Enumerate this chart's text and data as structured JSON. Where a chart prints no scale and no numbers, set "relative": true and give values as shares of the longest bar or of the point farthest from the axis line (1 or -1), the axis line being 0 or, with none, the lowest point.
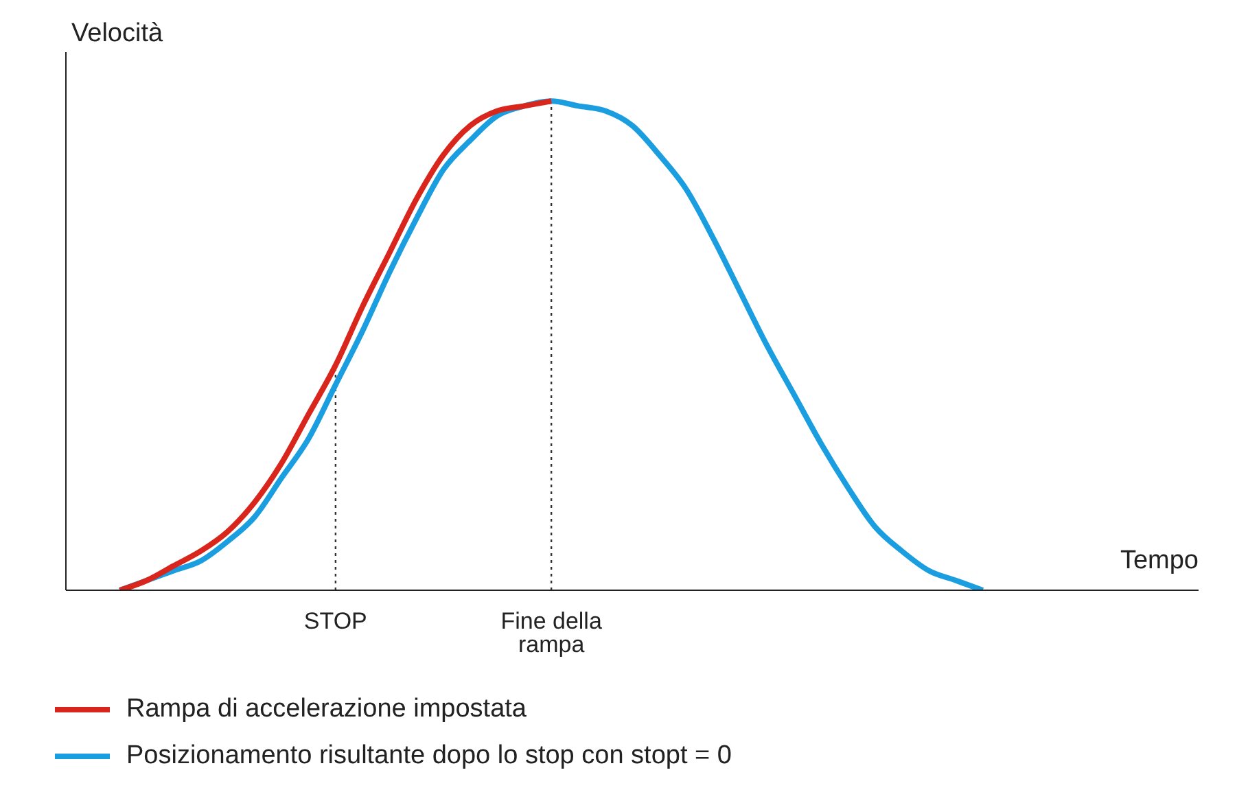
{
  "chart_data": {
    "type": "line",
    "relative": true,
    "xlabel": "Tempo",
    "ylabel": "Velocità",
    "categories": [
      null,
      null,
      null,
      null,
      null,
      null,
      null,
      null,
      null,
      null,
      "STOP",
      null,
      null,
      null,
      null,
      null,
      null,
      null,
      "Fine della rampa",
      null,
      null,
      null,
      null,
      null,
      null,
      null,
      null,
      null,
      null,
      null,
      null,
      null,
      null,
      null,
      null,
      null,
      null,
      null,
      null,
      null,
      null,
      null,
      null
    ],
    "series": [
      {
        "name": "Rampa di accelerazione impostata",
        "color": "#d9261c",
        "values": [
          null,
          null,
          0,
          0.02,
          0.05,
          0.08,
          0.12,
          0.18,
          0.26,
          0.36,
          0.46,
          0.58,
          0.69,
          0.8,
          0.89,
          0.95,
          0.98,
          0.99,
          1,
          null,
          null,
          null,
          null,
          null,
          null,
          null,
          null,
          null,
          null,
          null,
          null,
          null,
          null,
          null,
          null,
          null,
          null,
          null,
          null,
          null,
          null,
          null,
          null
        ]
      },
      {
        "name": "Posizionamento risultante dopo lo stop con stopt = 0",
        "color": "#1a9ee0",
        "values": [
          null,
          null,
          0,
          0.02,
          0.04,
          0.06,
          0.1,
          0.15,
          0.23,
          0.31,
          0.42,
          0.53,
          0.65,
          0.76,
          0.86,
          0.92,
          0.97,
          0.99,
          1,
          0.99,
          0.98,
          0.95,
          0.89,
          0.82,
          0.72,
          0.61,
          0.5,
          0.4,
          0.3,
          0.21,
          0.13,
          0.08,
          0.04,
          0.02,
          0,
          null,
          null,
          null,
          null,
          null,
          null,
          null,
          null
        ]
      }
    ],
    "ref_lines": [
      {
        "axis": "x",
        "value": "STOP",
        "line_style": "dotted",
        "color": "#333333"
      },
      {
        "axis": "x",
        "value": "Fine della rampa",
        "line_style": "dotted",
        "color": "#333333"
      }
    ],
    "marker": "none",
    "line_style": "solid",
    "legend": "bottom"
  }
}
